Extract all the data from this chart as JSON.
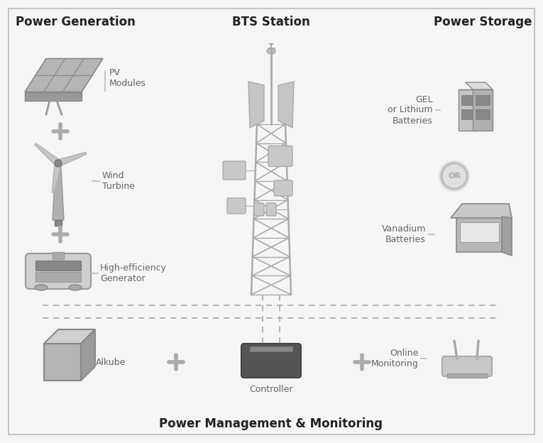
{
  "title_left": "Power Generation",
  "title_center": "BTS Station",
  "title_right": "Power Storage",
  "title_bottom": "Power Management & Monitoring",
  "bg_color": "#f5f5f5",
  "border_color": "#cccccc",
  "gray_dark": "#888888",
  "gray_mid": "#aaaaaa",
  "gray_light": "#cccccc",
  "gray_lighter": "#dddddd",
  "labels": {
    "pv": "PV\nModules",
    "wind": "Wind\nTurbine",
    "gen": "High-efficiency\nGenerator",
    "alkube": "Alkube",
    "controller": "Controller",
    "online": "Online\nMonitoring",
    "gel": "GEL\nor Lithium\nBatteries",
    "vanadium": "Vanadium\nBatteries"
  }
}
